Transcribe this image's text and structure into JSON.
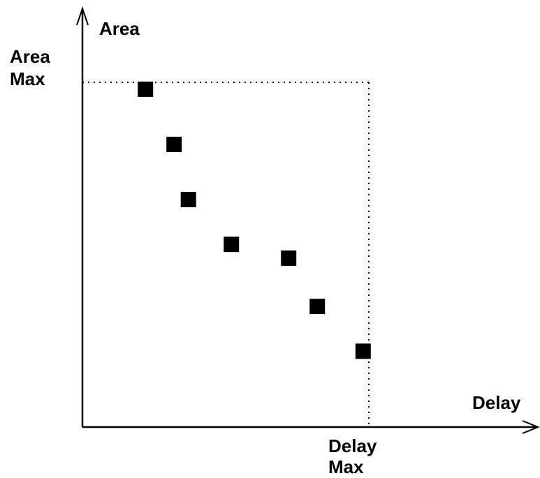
{
  "chart_data": {
    "type": "scatter",
    "title": "",
    "xlabel": "Delay",
    "ylabel": "Area",
    "x_max_label": [
      "Delay",
      "Max"
    ],
    "y_max_label": [
      "Area",
      "Max"
    ],
    "xlim": [
      0,
      100
    ],
    "ylim": [
      0,
      100
    ],
    "x_max": 100,
    "y_max": 100,
    "grid": false,
    "legend": "none",
    "series": [
      {
        "x": [
          22,
          32,
          37,
          52,
          72,
          82,
          98
        ],
        "y": [
          98,
          82,
          66,
          53,
          49,
          35,
          22
        ],
        "marker": "square",
        "color": "#000000"
      }
    ]
  }
}
